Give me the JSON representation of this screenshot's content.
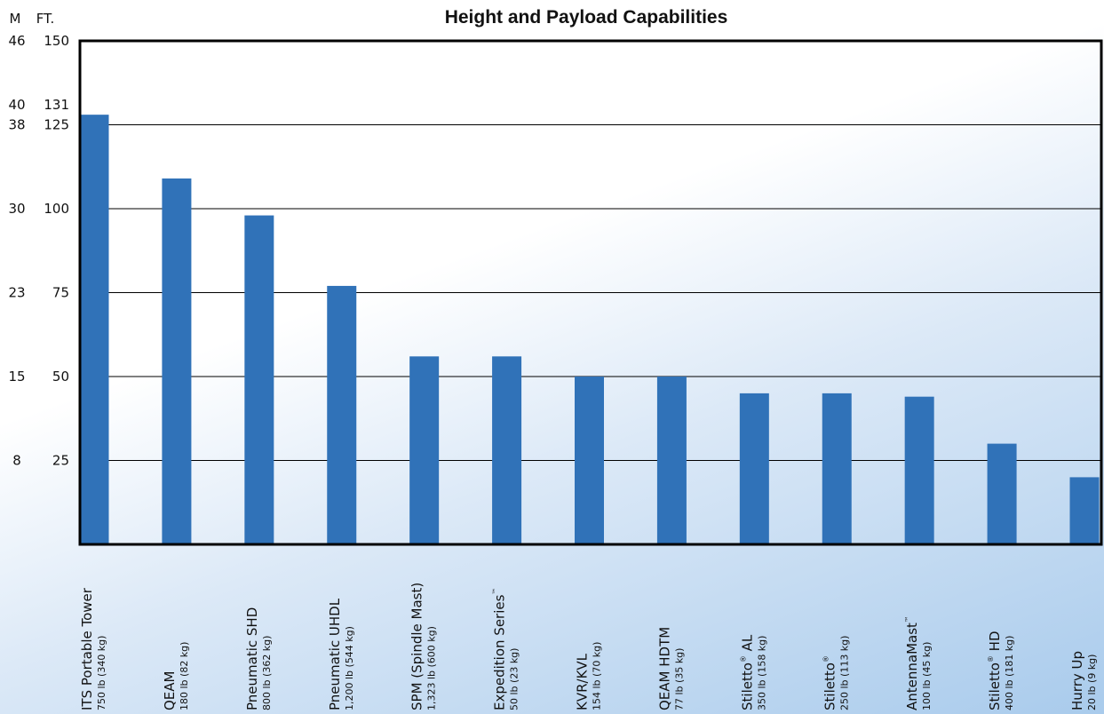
{
  "chart_data": {
    "type": "bar",
    "title": "Height and Payload Capabilities",
    "axis_headers": {
      "left": "M",
      "right": "FT."
    },
    "ylim": [
      0,
      150
    ],
    "y_ticks": [
      {
        "ft": 150,
        "ft_label": "150",
        "m_label": "46"
      },
      {
        "ft": 131,
        "ft_label": "131",
        "m_label": "40"
      },
      {
        "ft": 125,
        "ft_label": "125",
        "m_label": "38"
      },
      {
        "ft": 100,
        "ft_label": "100",
        "m_label": "30"
      },
      {
        "ft": 75,
        "ft_label": "75",
        "m_label": "23"
      },
      {
        "ft": 50,
        "ft_label": "50",
        "m_label": "15"
      },
      {
        "ft": 25,
        "ft_label": "25",
        "m_label": "8"
      }
    ],
    "gridlines": [
      125,
      100,
      75,
      50,
      25
    ],
    "bar_color": "#3072b8",
    "categories": [
      {
        "name": "ITS Portable Tower",
        "mark": "",
        "name_suffix": "",
        "payload": "750 lb (340 kg)",
        "value": 128
      },
      {
        "name": "QEAM",
        "mark": "",
        "name_suffix": "",
        "payload": "180 lb (82 kg)",
        "value": 109
      },
      {
        "name": "Pneumatic SHD",
        "mark": "",
        "name_suffix": "",
        "payload": "800 lb (362 kg)",
        "value": 98
      },
      {
        "name": "Pneumatic UHDL",
        "mark": "",
        "name_suffix": "",
        "payload": "1,200 lb (544 kg)",
        "value": 77
      },
      {
        "name": "SPM (Spindle Mast)",
        "mark": "",
        "name_suffix": "",
        "payload": "1,323 lb (600 kg)",
        "value": 56
      },
      {
        "name": "Expedition Series",
        "mark": "™",
        "name_suffix": "",
        "payload": "50 lb (23 kg)",
        "value": 56
      },
      {
        "name": "KVR/KVL",
        "mark": "",
        "name_suffix": "",
        "payload": "154 lb (70 kg)",
        "value": 50
      },
      {
        "name": "QEAM HDTM",
        "mark": "",
        "name_suffix": "",
        "payload": "77 lb (35 kg)",
        "value": 50
      },
      {
        "name": "Stiletto",
        "mark": "®",
        "name_suffix": " AL",
        "payload": "350 lb (158 kg)",
        "value": 45
      },
      {
        "name": "Stiletto",
        "mark": "®",
        "name_suffix": "",
        "payload": "250 lb (113 kg)",
        "value": 45
      },
      {
        "name": "AntennaMast",
        "mark": "™",
        "name_suffix": "",
        "payload": "100 lb (45 kg)",
        "value": 44
      },
      {
        "name": "Stiletto",
        "mark": "®",
        "name_suffix": " HD",
        "payload": "400 lb (181 kg)",
        "value": 30
      },
      {
        "name": "Hurry Up",
        "mark": "",
        "name_suffix": "",
        "payload": "20 lb (9 kg)",
        "value": 20
      }
    ]
  }
}
